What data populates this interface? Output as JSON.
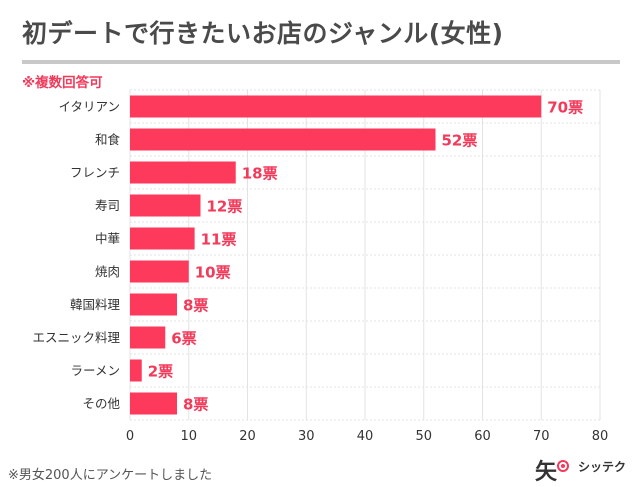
{
  "title": "初デートで行きたいお店のジャンル(女性)",
  "note": "※複数回答可",
  "footnote": "※男女200人にアンケートしました",
  "logo": {
    "mark": "矢",
    "text": "シッテク"
  },
  "colors": {
    "bar": "#fe3a5c",
    "accent": "#f23a5a",
    "grid": "#e3e3e3",
    "title": "#4a4a4a"
  },
  "chart_data": {
    "type": "bar",
    "orientation": "horizontal",
    "categories": [
      "イタリアン",
      "和食",
      "フレンチ",
      "寿司",
      "中華",
      "焼肉",
      "韓国料理",
      "エスニック料理",
      "ラーメン",
      "その他"
    ],
    "values": [
      70,
      52,
      18,
      12,
      11,
      10,
      8,
      6,
      2,
      8
    ],
    "value_labels": [
      "70票",
      "52票",
      "18票",
      "12票",
      "11票",
      "10票",
      "8票",
      "6票",
      "2票",
      "8票"
    ],
    "xlim": [
      0,
      80
    ],
    "xticks": [
      0,
      10,
      20,
      30,
      40,
      50,
      60,
      70,
      80
    ],
    "grid": true
  }
}
